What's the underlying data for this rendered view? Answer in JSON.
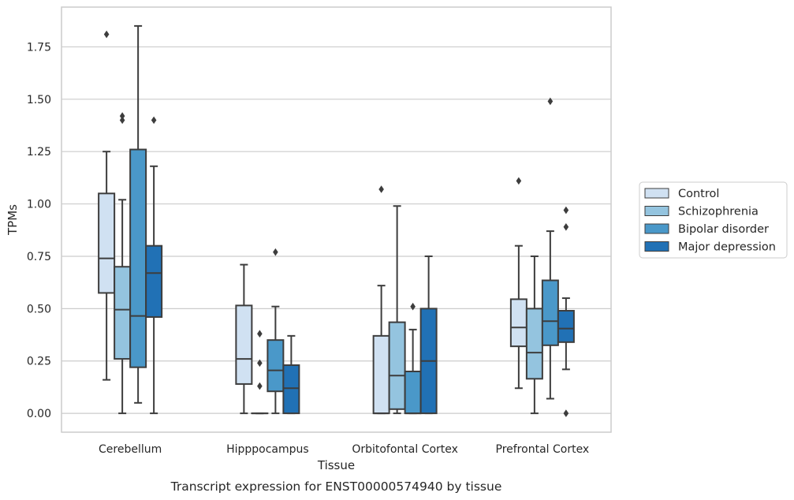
{
  "chart_data": {
    "type": "box",
    "title": "",
    "caption": "Transcript expression for ENST00000574940 by tissue",
    "xlabel": "Tissue",
    "ylabel": "TPMs",
    "ylim": [
      -0.09,
      1.94
    ],
    "yticks": [
      0.0,
      0.25,
      0.5,
      0.75,
      1.0,
      1.25,
      1.5,
      1.75
    ],
    "ytick_labels": [
      "0.00",
      "0.25",
      "0.50",
      "0.75",
      "1.00",
      "1.25",
      "1.50",
      "1.75"
    ],
    "grid": "horizontal",
    "legend_position": "right",
    "categories": [
      "Cerebellum",
      "Hipppocampus",
      "Orbitofontal Cortex",
      "Prefrontal Cortex"
    ],
    "series": [
      {
        "name": "Control",
        "color": "#d0e1f2",
        "boxes": [
          {
            "whislo": 0.16,
            "q1": 0.575,
            "med": 0.74,
            "q3": 1.05,
            "whishi": 1.25,
            "fliers": [
              1.81
            ]
          },
          {
            "whislo": 0.0,
            "q1": 0.14,
            "med": 0.26,
            "q3": 0.515,
            "whishi": 0.71,
            "fliers": []
          },
          {
            "whislo": 0.0,
            "q1": 0.0,
            "med": 0.0,
            "q3": 0.37,
            "whishi": 0.61,
            "fliers": [
              1.07
            ]
          },
          {
            "whislo": 0.12,
            "q1": 0.32,
            "med": 0.41,
            "q3": 0.545,
            "whishi": 0.8,
            "fliers": [
              1.11
            ]
          }
        ]
      },
      {
        "name": "Schizophrenia",
        "color": "#94c4df",
        "boxes": [
          {
            "whislo": 0.0,
            "q1": 0.26,
            "med": 0.495,
            "q3": 0.7,
            "whishi": 1.02,
            "fliers": [
              1.4,
              1.42
            ]
          },
          {
            "whislo": 0.0,
            "q1": 0.0,
            "med": 0.0,
            "q3": 0.0,
            "whishi": 0.0,
            "fliers": [
              0.13,
              0.24,
              0.38
            ]
          },
          {
            "whislo": 0.0,
            "q1": 0.02,
            "med": 0.18,
            "q3": 0.435,
            "whishi": 0.99,
            "fliers": []
          },
          {
            "whislo": 0.0,
            "q1": 0.165,
            "med": 0.29,
            "q3": 0.5,
            "whishi": 0.75,
            "fliers": []
          }
        ]
      },
      {
        "name": "Bipolar disorder",
        "color": "#4a98c9",
        "boxes": [
          {
            "whislo": 0.05,
            "q1": 0.22,
            "med": 0.465,
            "q3": 1.26,
            "whishi": 1.85,
            "fliers": []
          },
          {
            "whislo": 0.0,
            "q1": 0.105,
            "med": 0.205,
            "q3": 0.35,
            "whishi": 0.51,
            "fliers": [
              0.77
            ]
          },
          {
            "whislo": 0.0,
            "q1": 0.0,
            "med": 0.0,
            "q3": 0.2,
            "whishi": 0.4,
            "fliers": [
              0.51
            ]
          },
          {
            "whislo": 0.07,
            "q1": 0.325,
            "med": 0.44,
            "q3": 0.635,
            "whishi": 0.87,
            "fliers": [
              1.49
            ]
          }
        ]
      },
      {
        "name": "Major depression",
        "color": "#2171b5",
        "boxes": [
          {
            "whislo": 0.0,
            "q1": 0.46,
            "med": 0.67,
            "q3": 0.8,
            "whishi": 1.18,
            "fliers": [
              1.4
            ]
          },
          {
            "whislo": 0.0,
            "q1": 0.0,
            "med": 0.12,
            "q3": 0.23,
            "whishi": 0.37,
            "fliers": []
          },
          {
            "whislo": 0.0,
            "q1": 0.0,
            "med": 0.25,
            "q3": 0.5,
            "whishi": 0.75,
            "fliers": []
          },
          {
            "whislo": 0.21,
            "q1": 0.34,
            "med": 0.405,
            "q3": 0.49,
            "whishi": 0.55,
            "fliers": [
              0.0,
              0.89,
              0.97
            ]
          }
        ]
      }
    ]
  }
}
